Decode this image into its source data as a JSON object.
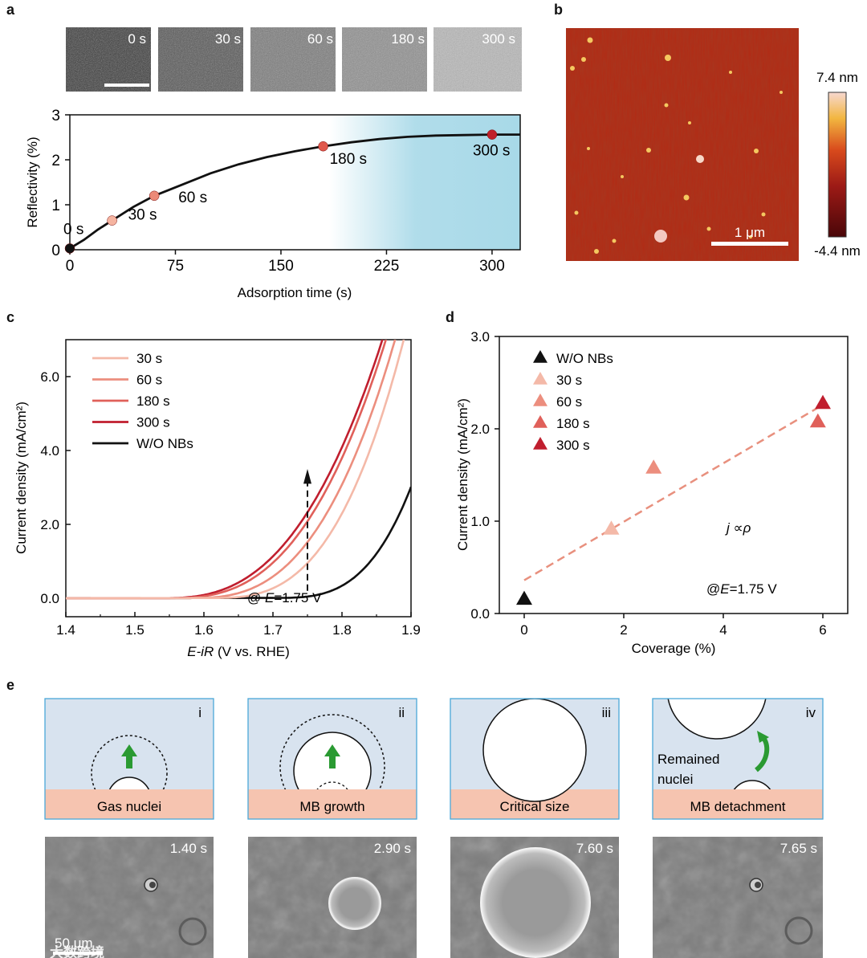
{
  "panel_labels": {
    "a": "a",
    "b": "b",
    "c": "c",
    "d": "d",
    "e": "e"
  },
  "panel_a": {
    "image_times": [
      "0 s",
      "30 s",
      "60 s",
      "180 s",
      "300 s"
    ],
    "chart_data": {
      "type": "line",
      "ylabel": "Reflectivity (%)",
      "xlabel": "Adsorption time (s)",
      "xlim": [
        0,
        320
      ],
      "ylim": [
        0,
        3
      ],
      "xticks": [
        0,
        75,
        150,
        225,
        300
      ],
      "yticks": [
        0,
        1,
        2,
        3
      ],
      "curve": [
        [
          0,
          0.03
        ],
        [
          10,
          0.22
        ],
        [
          20,
          0.45
        ],
        [
          30,
          0.65
        ],
        [
          45,
          0.95
        ],
        [
          60,
          1.2
        ],
        [
          80,
          1.45
        ],
        [
          100,
          1.7
        ],
        [
          120,
          1.9
        ],
        [
          140,
          2.06
        ],
        [
          160,
          2.19
        ],
        [
          180,
          2.3
        ],
        [
          200,
          2.39
        ],
        [
          220,
          2.46
        ],
        [
          240,
          2.51
        ],
        [
          260,
          2.54
        ],
        [
          280,
          2.55
        ],
        [
          300,
          2.56
        ],
        [
          320,
          2.56
        ]
      ],
      "points": [
        {
          "x": 0,
          "y": 0.03,
          "label": "0 s",
          "color": "#111111"
        },
        {
          "x": 30,
          "y": 0.65,
          "label": "30 s",
          "color": "#f5b4a0"
        },
        {
          "x": 60,
          "y": 1.2,
          "label": "60 s",
          "color": "#ec8a78"
        },
        {
          "x": 180,
          "y": 2.3,
          "label": "180 s",
          "color": "#e0584c"
        },
        {
          "x": 300,
          "y": 2.56,
          "label": "300 s",
          "color": "#c0202a"
        }
      ],
      "shade_color": "#a8d9e8"
    }
  },
  "panel_b": {
    "scale_label": "1 μm",
    "colorbar_max": "7.4 nm",
    "colorbar_min": "-4.4 nm"
  },
  "panel_c": {
    "chart_data": {
      "type": "line",
      "xlabel_italic": "E-iR",
      "xlabel_rest": " (V vs. RHE)",
      "ylabel": "Current density (mA/cm²)",
      "xlim": [
        1.4,
        1.9
      ],
      "ylim": [
        -0.5,
        7.0
      ],
      "xticks": [
        "1.4",
        "1.5",
        "1.6",
        "1.7",
        "1.8",
        "1.9"
      ],
      "yticks": [
        "0.0",
        "2.0",
        "4.0",
        "6.0"
      ],
      "series": [
        {
          "name": "30 s",
          "color": "#f4b9a8",
          "onset": 1.61,
          "scale": 7.0,
          "power": 2.9
        },
        {
          "name": "60 s",
          "color": "#ec8e7e",
          "onset": 1.58,
          "scale": 7.0,
          "power": 2.75
        },
        {
          "name": "180 s",
          "color": "#e0605a",
          "onset": 1.55,
          "scale": 7.0,
          "power": 2.7
        },
        {
          "name": "300 s",
          "color": "#c01e2e",
          "onset": 1.54,
          "scale": 7.0,
          "power": 2.65
        },
        {
          "name": "W/O NBs",
          "color": "#111111",
          "onset": 1.7,
          "scale": 3.0,
          "power": 3.2
        }
      ],
      "annotation_prefix": "@ ",
      "annotation_var": "E",
      "annotation_value": "=1.75 V",
      "arrow_x": 1.75
    }
  },
  "panel_d": {
    "chart_data": {
      "type": "scatter",
      "xlabel": "Coverage (%)",
      "ylabel": "Current density (mA/cm²)",
      "xlim": [
        -0.5,
        6.5
      ],
      "ylim": [
        0,
        3
      ],
      "xticks": [
        "0",
        "2",
        "4",
        "6"
      ],
      "yticks": [
        "0.0",
        "1.0",
        "2.0",
        "3.0"
      ],
      "points": [
        {
          "name": "W/O NBs",
          "x": 0,
          "y": 0.16,
          "color": "#111111"
        },
        {
          "name": "30 s",
          "x": 1.75,
          "y": 0.92,
          "color": "#f4b9a8"
        },
        {
          "name": "60 s",
          "x": 2.6,
          "y": 1.58,
          "color": "#ec8e7e"
        },
        {
          "name": "180 s",
          "x": 5.9,
          "y": 2.08,
          "color": "#e0605a"
        },
        {
          "name": "300 s",
          "x": 6.0,
          "y": 2.28,
          "color": "#c01e2e"
        }
      ],
      "fit": {
        "x0": 0,
        "y0": 0.36,
        "x1": 6,
        "y1": 2.26,
        "color": "#e8907e"
      },
      "relation_var1": "j",
      "relation_op": " ∝",
      "relation_var2": "ρ",
      "annotation_prefix": "@",
      "annotation_var": "E",
      "annotation_value": "=1.75 V"
    }
  },
  "panel_e": {
    "stages": [
      {
        "numeral": "i",
        "label": "Gas nuclei"
      },
      {
        "numeral": "ii",
        "label": "MB growth"
      },
      {
        "numeral": "iii",
        "label": "Critical size"
      },
      {
        "numeral": "iv",
        "label": "MB detachment"
      }
    ],
    "remained_line1": "Remained",
    "remained_line2": "nuclei",
    "photo_times": [
      "1.40 s",
      "2.90 s",
      "7.60 s",
      "7.65 s"
    ],
    "scale_label": "50 μm",
    "watermark": "大数跨境"
  }
}
